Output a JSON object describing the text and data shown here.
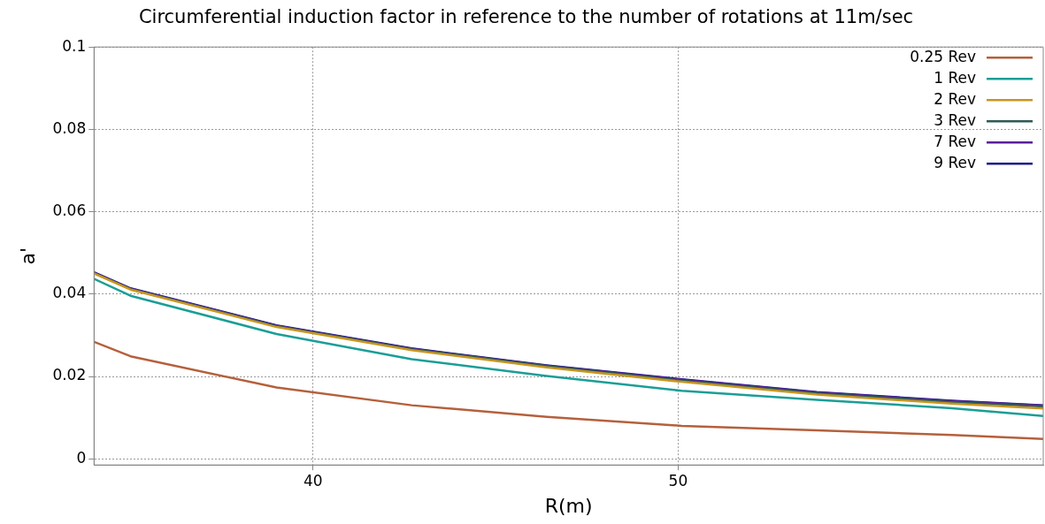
{
  "chart_data": {
    "type": "line",
    "title": "Circumferential induction factor in reference to the number of rotations at 11m/sec",
    "xlabel": "R(m)",
    "ylabel": "a'",
    "x": [
      34,
      35,
      39,
      42.7,
      46.4,
      50.1,
      53.8,
      57.5,
      60
    ],
    "series": [
      {
        "name": "0.25 Rev",
        "color": "#b5603c",
        "values": [
          0.0284,
          0.0249,
          0.0173,
          0.013,
          0.0102,
          0.008,
          0.0069,
          0.0058,
          0.0048
        ]
      },
      {
        "name": "1 Rev",
        "color": "#1a9e96",
        "values": [
          0.0437,
          0.0396,
          0.0303,
          0.0242,
          0.0201,
          0.0165,
          0.0143,
          0.0123,
          0.0104
        ]
      },
      {
        "name": "2 Rev",
        "color": "#c8961e",
        "values": [
          0.045,
          0.0411,
          0.032,
          0.0264,
          0.0222,
          0.0187,
          0.0156,
          0.0134,
          0.0122
        ]
      },
      {
        "name": "3 Rev",
        "color": "#2f5a55",
        "values": [
          0.0451,
          0.0412,
          0.0322,
          0.0266,
          0.0225,
          0.019,
          0.0159,
          0.0138,
          0.0127
        ]
      },
      {
        "name": "7 Rev",
        "color": "#5a1e9a",
        "values": [
          0.0452,
          0.0413,
          0.0323,
          0.0267,
          0.0226,
          0.0192,
          0.0161,
          0.014,
          0.0129
        ]
      },
      {
        "name": "9 Rev",
        "color": "#1a1a8c",
        "values": [
          0.0453,
          0.0414,
          0.0324,
          0.0268,
          0.0227,
          0.0193,
          0.0162,
          0.0141,
          0.013
        ]
      }
    ],
    "xlim": [
      34,
      60
    ],
    "xticks": [
      40,
      50
    ],
    "ylim": [
      -0.0015,
      0.1
    ],
    "yticks": [
      0,
      0.02,
      0.04,
      0.06,
      0.08,
      0.1
    ],
    "grid": true,
    "legend": "top right",
    "marker": "none",
    "line_style": "solid"
  }
}
